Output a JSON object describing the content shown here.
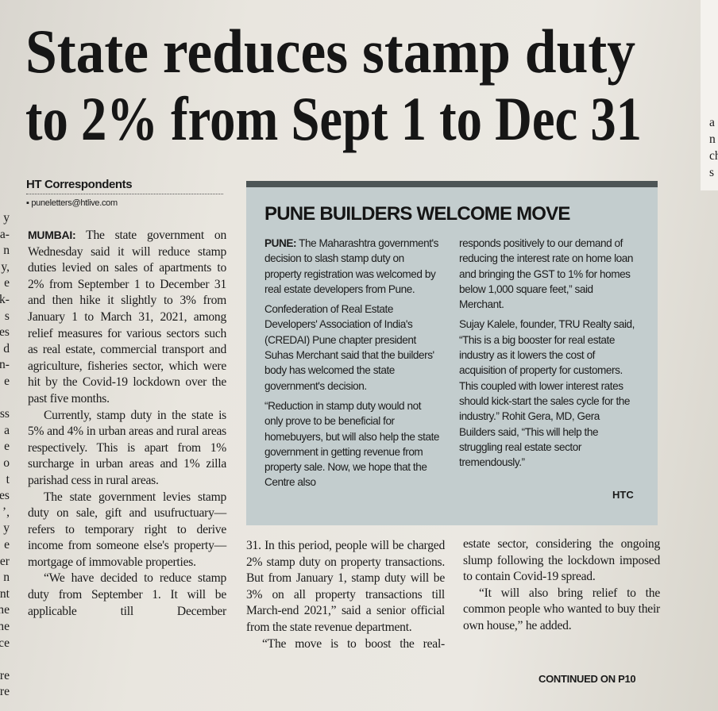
{
  "headline": [
    "State reduces stamp duty",
    "to 2% from Sept 1 to Dec 31"
  ],
  "byline": "HT Correspondents",
  "email": "puneletters@htlive.com",
  "body_columns": [
    [
      {
        "lead": "MUMBAI:",
        "text": "The state government on Wednesday said it will reduce stamp duties levied on sales of apartments to 2% from September 1 to December 31 and then hike it slightly to 3% from January 1 to March 31, 2021, among relief measures for various sectors such as real estate, commercial transport and agriculture, fisheries sector, which were hit by the Covid-19 lockdown over the past five months."
      },
      "Currently, stamp duty in the state is 5% and 4% in urban areas and rural areas respectively. This is apart from 1% surcharge in urban areas and 1% zilla parishad cess in rural areas.",
      "The state government levies stamp duty on sale, gift and usufructuary—refers to temporary right to derive income from someone else's property—mortgage of immovable properties.",
      "“We have decided to reduce stamp duty from September 1. It will be applicable till December"
    ],
    [
      "31. In this period, people will be charged 2% stamp duty on property transactions. But from January 1, stamp duty will be 3% on all property transactions till March-end 2021,” said a senior official from the state revenue department.",
      "“The move is to boost the real-"
    ],
    [
      "estate sector, considering the ongoing slump following the lockdown imposed to contain Covid-19 spread.",
      "“It will also bring relief to the common people who wanted to buy their own house,” he added."
    ]
  ],
  "continued": "CONTINUED ON P10",
  "sidebar": {
    "title": "PUNE BUILDERS WELCOME MOVE",
    "columns": [
      [
        {
          "lead": "PUNE:",
          "text": "The Maharashtra government's decision to slash stamp duty on property registration was welcomed by real estate developers from Pune."
        },
        "Confederation of Real Estate Developers' Association of India's (CREDAI) Pune chapter president Suhas Merchant said that the builders' body has welcomed the state government's decision.",
        "“Reduction in stamp duty would not only prove to be beneficial for homebuyers, but will also help the state government in getting revenue from property sale. Now, we hope that the Centre also"
      ],
      [
        "responds positively to our demand of reducing the interest rate on home loan and bringing the GST to 1% for homes below 1,000 square feet,” said Merchant.",
        "Sujay Kalele, founder, TRU Realty said, “This is a big booster for real estate industry as it lowers the cost of acquisition of property for customers. This coupled with lower interest rates should kick-start the sales cycle for the industry.” Rohit Gera, MD, Gera Builders said, “This will help the struggling real estate sector tremendously.”"
      ]
    ],
    "credit": "HTC"
  },
  "left_edge_fragments": [
    "y",
    "a-",
    "n",
    "y,",
    "e",
    "k-",
    "s",
    "es",
    "d",
    "n-",
    "e",
    "ss",
    "a",
    "e",
    "o",
    "t",
    "es",
    "’,",
    "y",
    "e",
    "er",
    "n",
    "nt",
    "ne",
    "ne",
    "ce",
    "re",
    "re"
  ],
  "right_edge_fragments": [
    "a",
    "n",
    "ch",
    "s"
  ]
}
